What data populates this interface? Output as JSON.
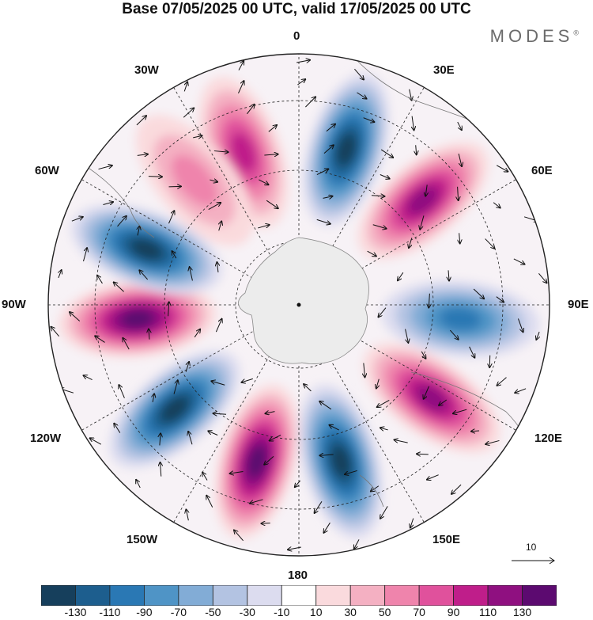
{
  "title": "Base 07/05/2025 00 UTC, valid 17/05/2025 00 UTC",
  "brand": {
    "name": "MODES",
    "mark": "®"
  },
  "map": {
    "projection": "south-polar-stereographic",
    "longitude_labels": {
      "top": "0",
      "right_top": "30E",
      "right_upper": "60E",
      "right": "90E",
      "right_lower": "120E",
      "right_bottom": "150E",
      "bottom": "180",
      "left_bottom": "150W",
      "left_lower": "120W",
      "left": "90W",
      "left_upper": "60W",
      "left_top": "30W"
    },
    "anomaly_centers": [
      {
        "sign": "negative",
        "value": -130,
        "lon": "17E"
      },
      {
        "sign": "positive",
        "value": 110,
        "lon": "50E"
      },
      {
        "sign": "negative",
        "value": -90,
        "lon": "95E"
      },
      {
        "sign": "positive",
        "value": 110,
        "lon": "125E"
      },
      {
        "sign": "negative",
        "value": -130,
        "lon": "165E"
      },
      {
        "sign": "positive",
        "value": 130,
        "lon": "165W"
      },
      {
        "sign": "negative",
        "value": -130,
        "lon": "130W"
      },
      {
        "sign": "positive",
        "value": 130,
        "lon": "95W"
      },
      {
        "sign": "negative",
        "value": -130,
        "lon": "70W"
      },
      {
        "sign": "positive",
        "value": 90,
        "lon": "20W"
      },
      {
        "sign": "positive",
        "value": 50,
        "lon": "40W"
      }
    ]
  },
  "vector_reference": {
    "label": "10"
  },
  "colorbar": {
    "colors": [
      "#163f5c",
      "#1d5e8e",
      "#2a78b4",
      "#4f94c6",
      "#82acd6",
      "#b3c3e2",
      "#dcdcef",
      "#ffffff",
      "#fadadd",
      "#f4b0c2",
      "#ef84ac",
      "#e0519c",
      "#bf1e8a",
      "#8f1080",
      "#5c0a70"
    ],
    "tick_labels": [
      "-130",
      "-110",
      "-90",
      "-70",
      "-50",
      "-30",
      "-10",
      "10",
      "30",
      "50",
      "70",
      "90",
      "110",
      "130"
    ]
  }
}
